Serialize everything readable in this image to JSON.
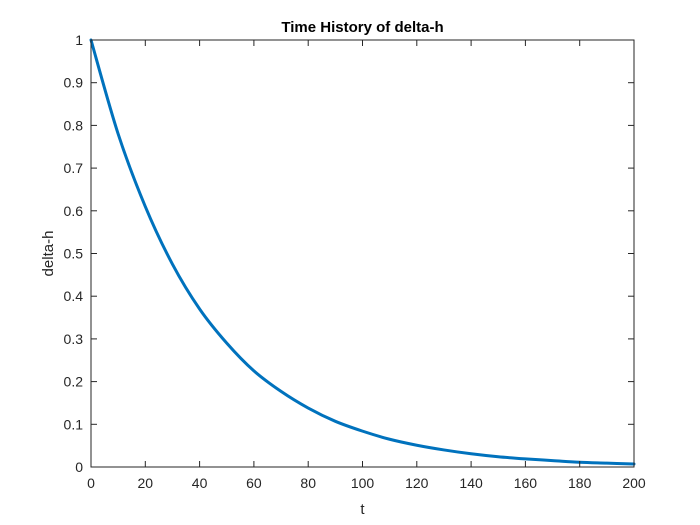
{
  "chart_data": {
    "type": "line",
    "title": "Time History of delta-h",
    "xlabel": "t",
    "ylabel": "delta-h",
    "xlim": [
      0,
      200
    ],
    "ylim": [
      0,
      1
    ],
    "xticks": [
      0,
      20,
      40,
      60,
      80,
      100,
      120,
      140,
      160,
      180,
      200
    ],
    "xtick_labels": [
      "0",
      "20",
      "40",
      "60",
      "80",
      "100",
      "120",
      "140",
      "160",
      "180",
      "200"
    ],
    "yticks": [
      0,
      0.1,
      0.2,
      0.3,
      0.4,
      0.5,
      0.6,
      0.7,
      0.8,
      0.9,
      1
    ],
    "ytick_labels": [
      "0",
      "0.1",
      "0.2",
      "0.3",
      "0.4",
      "0.5",
      "0.6",
      "0.7",
      "0.8",
      "0.9",
      "1"
    ],
    "grid": false,
    "box": true,
    "series": [
      {
        "color": "#0072BD",
        "x": [
          0,
          10,
          20,
          30,
          40,
          50,
          60,
          70,
          80,
          90,
          100,
          110,
          120,
          130,
          140,
          150,
          160,
          170,
          180,
          190,
          200
        ],
        "y": [
          1.0,
          0.78,
          0.61,
          0.475,
          0.37,
          0.29,
          0.225,
          0.177,
          0.138,
          0.107,
          0.084,
          0.065,
          0.051,
          0.04,
          0.031,
          0.024,
          0.019,
          0.015,
          0.011,
          0.009,
          0.007
        ]
      }
    ]
  }
}
